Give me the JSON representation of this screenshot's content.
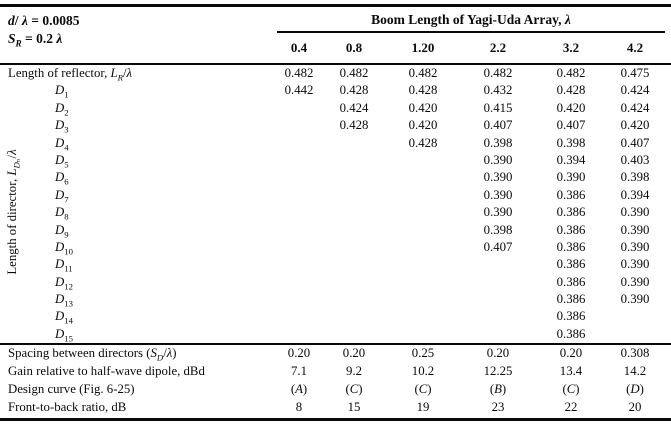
{
  "table": {
    "corner_params": [
      "*d*/ *λ* = 0.0085",
      "*S*_{*R*} = 0.2 *λ*"
    ],
    "boom_header": "Boom Length of Yagi-Uda Array, *λ*",
    "columns": [
      "0.4",
      "0.8",
      "1.20",
      "2.2",
      "3.2",
      "4.2"
    ],
    "side_label": "Length of director, *L*_{*D*ₙ}/*λ*",
    "rows": [
      {
        "label": "Length of reflector, *L*_{*R*}/*λ*",
        "indent": false,
        "values": [
          "0.482",
          "0.482",
          "0.482",
          "0.482",
          "0.482",
          "0.475"
        ]
      },
      {
        "label": "*D*_{1}",
        "indent": true,
        "values": [
          "0.442",
          "0.428",
          "0.428",
          "0.432",
          "0.428",
          "0.424"
        ]
      },
      {
        "label": "*D*_{2}",
        "indent": true,
        "values": [
          "",
          "0.424",
          "0.420",
          "0.415",
          "0.420",
          "0.424"
        ]
      },
      {
        "label": "*D*_{3}",
        "indent": true,
        "values": [
          "",
          "0.428",
          "0.420",
          "0.407",
          "0.407",
          "0.420"
        ]
      },
      {
        "label": "*D*_{4}",
        "indent": true,
        "values": [
          "",
          "",
          "0.428",
          "0.398",
          "0.398",
          "0.407"
        ]
      },
      {
        "label": "*D*_{5}",
        "indent": true,
        "values": [
          "",
          "",
          "",
          "0.390",
          "0.394",
          "0.403"
        ]
      },
      {
        "label": "*D*_{6}",
        "indent": true,
        "values": [
          "",
          "",
          "",
          "0.390",
          "0.390",
          "0.398"
        ]
      },
      {
        "label": "*D*_{7}",
        "indent": true,
        "values": [
          "",
          "",
          "",
          "0.390",
          "0.386",
          "0.394"
        ]
      },
      {
        "label": "*D*_{8}",
        "indent": true,
        "values": [
          "",
          "",
          "",
          "0.390",
          "0.386",
          "0.390"
        ]
      },
      {
        "label": "*D*_{9}",
        "indent": true,
        "values": [
          "",
          "",
          "",
          "0.398",
          "0.386",
          "0.390"
        ]
      },
      {
        "label": "*D*_{10}",
        "indent": true,
        "values": [
          "",
          "",
          "",
          "0.407",
          "0.386",
          "0.390"
        ]
      },
      {
        "label": "*D*_{11}",
        "indent": true,
        "values": [
          "",
          "",
          "",
          "",
          "0.386",
          "0.390"
        ]
      },
      {
        "label": "*D*_{12}",
        "indent": true,
        "values": [
          "",
          "",
          "",
          "",
          "0.386",
          "0.390"
        ]
      },
      {
        "label": "*D*_{13}",
        "indent": true,
        "values": [
          "",
          "",
          "",
          "",
          "0.386",
          "0.390"
        ]
      },
      {
        "label": "*D*_{14}",
        "indent": true,
        "values": [
          "",
          "",
          "",
          "",
          "0.386",
          ""
        ]
      },
      {
        "label": "*D*_{15}",
        "indent": true,
        "values": [
          "",
          "",
          "",
          "",
          "0.386",
          ""
        ]
      }
    ],
    "footer_rows": [
      {
        "label": "Spacing between directors (*S*_{*D*}/*λ*)",
        "values": [
          "0.20",
          "0.20",
          "0.25",
          "0.20",
          "0.20",
          "0.308"
        ]
      },
      {
        "label": "Gain relative to half-wave dipole, dBd",
        "values": [
          "7.1",
          "9.2",
          "10.2",
          "12.25",
          "13.4",
          "14.2"
        ]
      },
      {
        "label": "Design curve (Fig. 6-25)",
        "values": [
          "(*A*)",
          "(*C*)",
          "(*C*)",
          "(*B*)",
          "(*C*)",
          "(*D*)"
        ]
      },
      {
        "label": "Front-to-back ratio, dB",
        "values": [
          "8",
          "15",
          "19",
          "23",
          "22",
          "20"
        ]
      }
    ]
  }
}
